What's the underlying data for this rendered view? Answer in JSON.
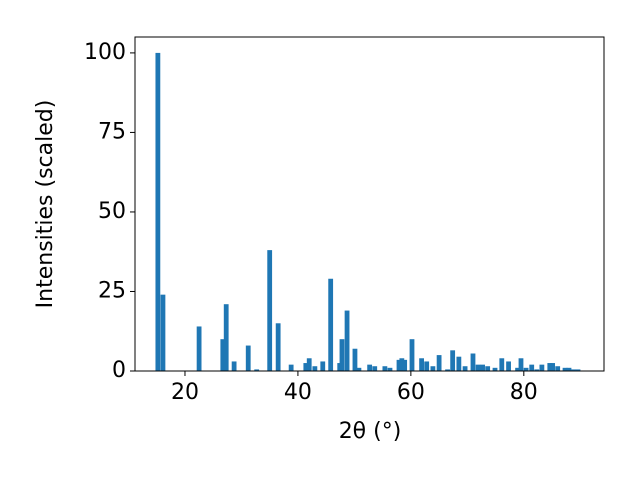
{
  "chart_data": {
    "type": "bar",
    "x_label": "2θ (°)",
    "y_label": "Intensities (scaled)",
    "color": "#1f77b4",
    "x": [
      15.2,
      16.1,
      22.5,
      26.7,
      27.3,
      28.7,
      31.2,
      32.7,
      35.0,
      36.5,
      38.8,
      41.4,
      42.0,
      43.0,
      44.4,
      45.8,
      47.4,
      47.8,
      48.7,
      50.1,
      50.8,
      52.7,
      53.6,
      55.4,
      56.3,
      57.9,
      58.4,
      58.9,
      60.2,
      61.9,
      62.8,
      63.9,
      65.0,
      66.5,
      67.4,
      68.5,
      69.6,
      71.0,
      71.9,
      72.7,
      73.6,
      74.9,
      76.1,
      77.3,
      78.9,
      79.5,
      80.4,
      81.4,
      82.3,
      83.2,
      84.6,
      85.1,
      86.0,
      87.3,
      88.0,
      88.8,
      89.6
    ],
    "values": [
      100,
      24,
      14,
      10,
      21,
      3,
      8,
      0.5,
      38,
      15,
      2,
      2.5,
      4,
      1.5,
      3,
      29,
      2.5,
      10,
      19,
      7,
      1,
      2,
      1.5,
      1.5,
      1,
      3.5,
      4,
      3.5,
      10,
      4,
      3,
      1.5,
      5,
      0.5,
      6.5,
      4.5,
      1.5,
      5.5,
      2,
      2,
      1.5,
      1,
      4,
      3,
      1,
      4,
      1,
      2,
      0.5,
      2,
      2.5,
      2.5,
      1.5,
      1,
      1,
      0.5,
      0.5
    ],
    "xlim": [
      11.15,
      94.2
    ],
    "ylim": [
      0,
      105
    ],
    "xticks": [
      20,
      40,
      60,
      80
    ],
    "yticks": [
      0,
      25,
      50,
      75,
      100
    ],
    "grid": false
  }
}
